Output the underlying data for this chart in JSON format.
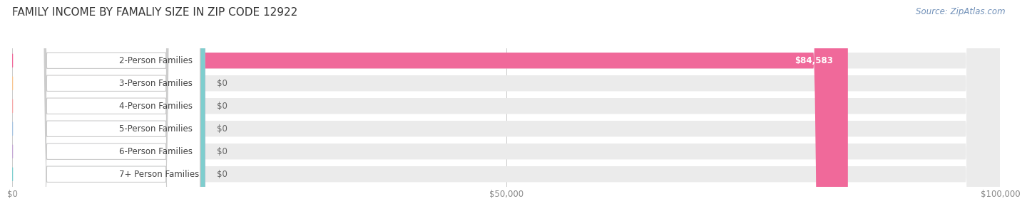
{
  "title": "FAMILY INCOME BY FAMALIY SIZE IN ZIP CODE 12922",
  "source": "Source: ZipAtlas.com",
  "categories": [
    "2-Person Families",
    "3-Person Families",
    "4-Person Families",
    "5-Person Families",
    "6-Person Families",
    "7+ Person Families"
  ],
  "values": [
    84583,
    0,
    0,
    0,
    0,
    0
  ],
  "bar_colors": [
    "#f0699a",
    "#f7c490",
    "#f4a8a8",
    "#a8c4e0",
    "#c4a8d4",
    "#7ecece"
  ],
  "value_labels": [
    "$84,583",
    "$0",
    "$0",
    "$0",
    "$0",
    "$0"
  ],
  "xlim": [
    0,
    100000
  ],
  "xticks": [
    0,
    50000,
    100000
  ],
  "xtick_labels": [
    "$0",
    "$50,000",
    "$100,000"
  ],
  "background_color": "#ffffff",
  "bar_bg_color": "#ebebeb",
  "row_bg_colors": [
    "#f8f8f8",
    "#f8f8f8",
    "#f8f8f8",
    "#f8f8f8",
    "#f8f8f8",
    "#f8f8f8"
  ],
  "title_fontsize": 11,
  "source_fontsize": 8.5,
  "bar_height": 0.7,
  "label_fontsize": 8.5,
  "value_label_fontsize": 8.5
}
